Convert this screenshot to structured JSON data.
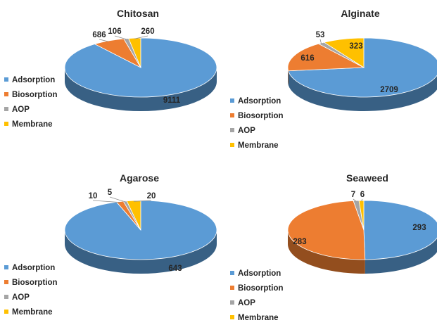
{
  "chart_data": [
    {
      "type": "pie",
      "title": "Chitosan",
      "categories": [
        "Adsorption",
        "Biosorption",
        "AOP",
        "Membrane"
      ],
      "values": [
        9111,
        686,
        106,
        260
      ],
      "colors": [
        "#5B9BD5",
        "#ED7D31",
        "#A5A5A5",
        "#FFC000"
      ],
      "legend_position": "left"
    },
    {
      "type": "pie",
      "title": "Alginate",
      "categories": [
        "Adsorption",
        "Biosorption",
        "AOP",
        "Membrane"
      ],
      "values": [
        2709,
        616,
        53,
        323
      ],
      "colors": [
        "#5B9BD5",
        "#ED7D31",
        "#A5A5A5",
        "#FFC000"
      ],
      "legend_position": "bottom-left"
    },
    {
      "type": "pie",
      "title": "Agarose",
      "categories": [
        "Adsorption",
        "Biosorption",
        "AOP",
        "Membrane"
      ],
      "values": [
        643,
        10,
        5,
        20
      ],
      "colors": [
        "#5B9BD5",
        "#ED7D31",
        "#A5A5A5",
        "#FFC000"
      ],
      "legend_position": "left"
    },
    {
      "type": "pie",
      "title": "Seaweed",
      "categories": [
        "Adsorption",
        "Biosorption",
        "AOP",
        "Membrane"
      ],
      "values": [
        293,
        283,
        7,
        6
      ],
      "colors": [
        "#5B9BD5",
        "#ED7D31",
        "#A5A5A5",
        "#FFC000"
      ],
      "legend_position": "bottom-left"
    }
  ]
}
